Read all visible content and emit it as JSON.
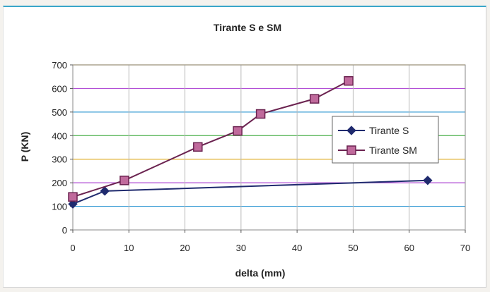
{
  "chart_data": {
    "type": "line",
    "title": "Tirante S e SM",
    "xlabel": "delta (mm)",
    "ylabel": "P (KN)",
    "xlim": [
      0,
      70
    ],
    "ylim": [
      0,
      700
    ],
    "xticks": [
      0,
      10,
      20,
      30,
      40,
      50,
      60,
      70
    ],
    "yticks": [
      0,
      100,
      200,
      300,
      400,
      500,
      600,
      700
    ],
    "grid": true,
    "legend_position": "right",
    "series": [
      {
        "name": "Tirante S",
        "color": "#1f2a6e",
        "marker": "diamond",
        "points": [
          [
            0,
            110
          ],
          [
            5.7,
            165
          ],
          [
            63.3,
            210
          ]
        ]
      },
      {
        "name": "Tirante SM",
        "color": "#6b2350",
        "marker": "square",
        "points": [
          [
            0,
            140
          ],
          [
            9.2,
            210
          ],
          [
            22.3,
            352
          ],
          [
            29.4,
            420
          ],
          [
            33.5,
            492
          ],
          [
            43.1,
            556
          ],
          [
            49.2,
            632
          ]
        ]
      }
    ]
  },
  "colors": {
    "grid": [
      "#4fb24f",
      "#3f9fd6",
      "#b24fd6",
      "#e0b030"
    ],
    "plot_border": "#888888"
  }
}
